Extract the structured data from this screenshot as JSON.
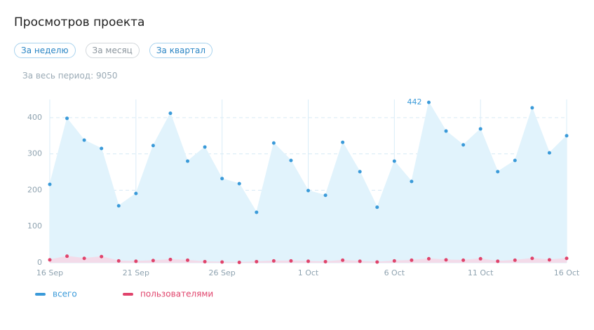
{
  "header": {
    "title": "Просмотров проекта"
  },
  "filters": [
    "За неделю",
    "За месяц",
    "За квартал"
  ],
  "summary": "За весь период: 9050",
  "chart_data": {
    "type": "area",
    "categories": [
      "16 Sep",
      null,
      null,
      null,
      null,
      "21 Sep",
      null,
      null,
      null,
      null,
      "26 Sep",
      null,
      null,
      null,
      null,
      "1 Oct",
      null,
      null,
      null,
      null,
      "6 Oct",
      null,
      null,
      null,
      null,
      "11 Oct",
      null,
      null,
      null,
      null,
      "16 Oct"
    ],
    "series": [
      {
        "name": "всего",
        "color": "#3a9ad9",
        "fill": "#e1f3fc",
        "values": [
          216,
          398,
          338,
          315,
          157,
          191,
          323,
          412,
          280,
          319,
          232,
          218,
          139,
          330,
          282,
          199,
          186,
          332,
          251,
          153,
          280,
          224,
          442,
          363,
          325,
          369,
          251,
          282,
          427,
          303,
          350
        ]
      },
      {
        "name": "пользователями",
        "color": "#e0436b",
        "fill": "#f3dbe9",
        "values": [
          8,
          18,
          12,
          17,
          5,
          4,
          6,
          9,
          7,
          3,
          2,
          1,
          3,
          5,
          5,
          4,
          3,
          7,
          4,
          2,
          5,
          7,
          11,
          8,
          7,
          11,
          4,
          7,
          12,
          8,
          12
        ]
      }
    ],
    "ylim": [
      0,
      450
    ],
    "yticks": [
      0,
      100,
      200,
      300,
      400
    ],
    "grid": true
  }
}
